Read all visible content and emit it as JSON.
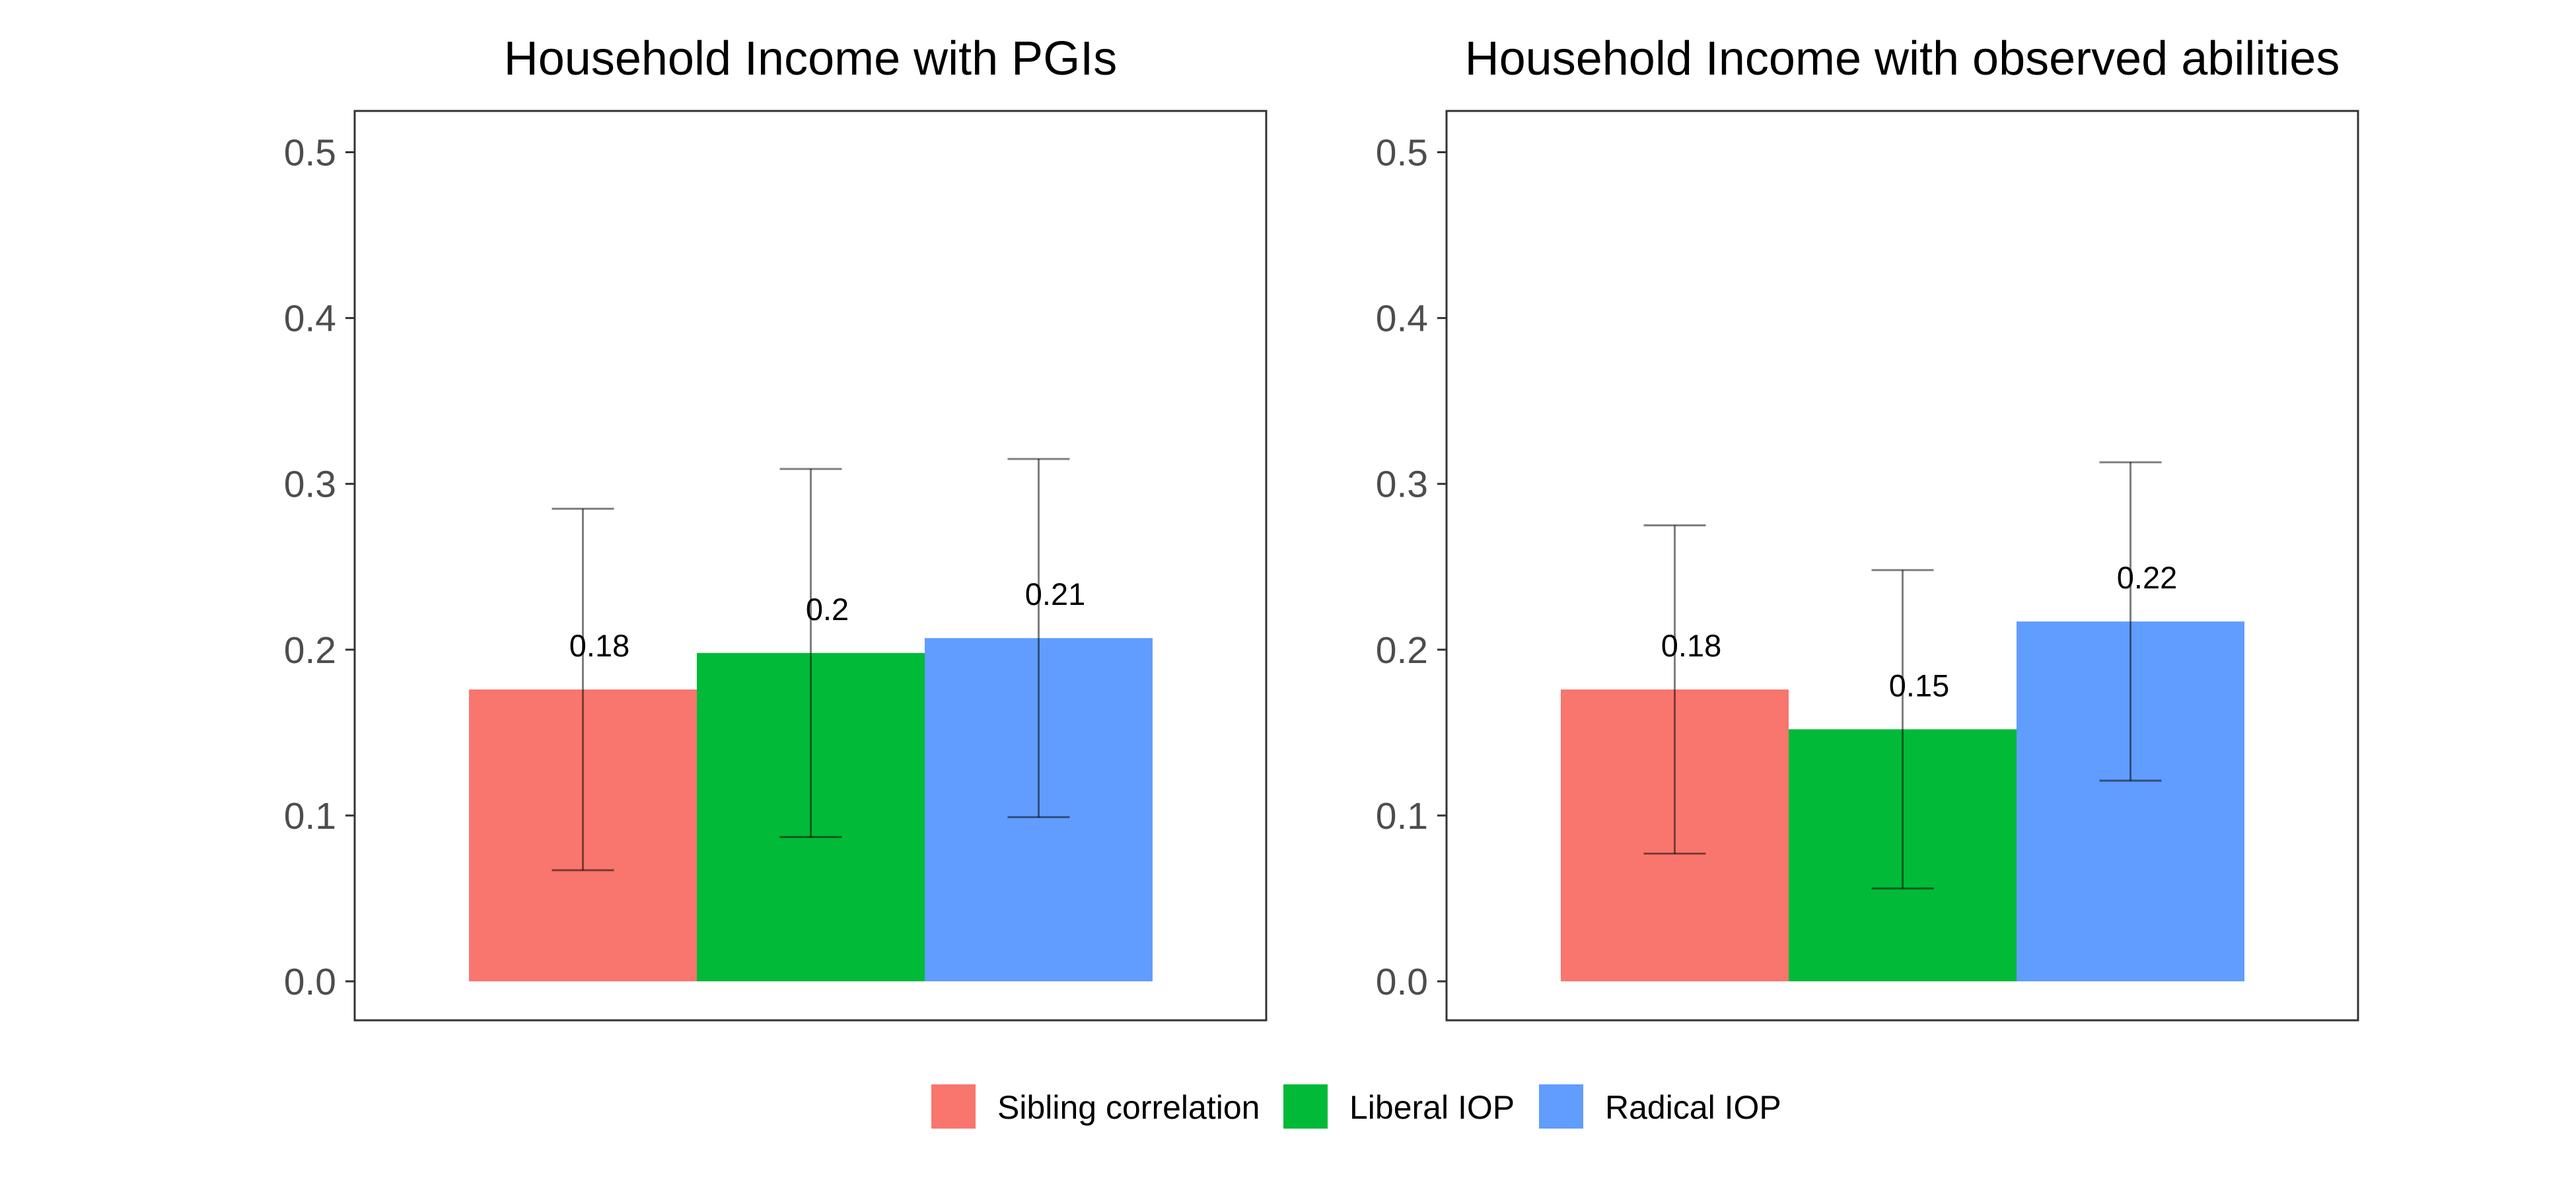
{
  "legend": [
    {
      "label": "Sibling correlation",
      "color": "#F8766D"
    },
    {
      "label": "Liberal IOP",
      "color": "#00BA38"
    },
    {
      "label": "Radical IOP",
      "color": "#619CFF"
    }
  ],
  "chart_data": [
    {
      "type": "bar",
      "title": "Household Income with PGIs",
      "xlabel": "",
      "ylabel": "",
      "categories": [
        "Sibling correlation",
        "Liberal IOP",
        "Radical IOP"
      ],
      "values": [
        0.176,
        0.198,
        0.207
      ],
      "value_labels": [
        "0.18",
        "0.2",
        "0.21"
      ],
      "error_low": [
        0.067,
        0.087,
        0.099
      ],
      "error_high": [
        0.285,
        0.309,
        0.315
      ],
      "colors": [
        "#F8766D",
        "#00BA38",
        "#619CFF"
      ],
      "ylim": [
        0,
        0.5
      ],
      "yticks": [
        "0.0",
        "0.1",
        "0.2",
        "0.3",
        "0.4",
        "0.5"
      ],
      "grid": false,
      "legend_position": "bottom"
    },
    {
      "type": "bar",
      "title": "Household Income with observed abilities",
      "xlabel": "",
      "ylabel": "",
      "categories": [
        "Sibling correlation",
        "Liberal IOP",
        "Radical IOP"
      ],
      "values": [
        0.176,
        0.152,
        0.217
      ],
      "value_labels": [
        "0.18",
        "0.15",
        "0.22"
      ],
      "error_low": [
        0.077,
        0.056,
        0.121
      ],
      "error_high": [
        0.275,
        0.248,
        0.313
      ],
      "colors": [
        "#F8766D",
        "#00BA38",
        "#619CFF"
      ],
      "ylim": [
        0,
        0.5
      ],
      "yticks": [
        "0.0",
        "0.1",
        "0.2",
        "0.3",
        "0.4",
        "0.5"
      ],
      "grid": false,
      "legend_position": "bottom"
    }
  ]
}
